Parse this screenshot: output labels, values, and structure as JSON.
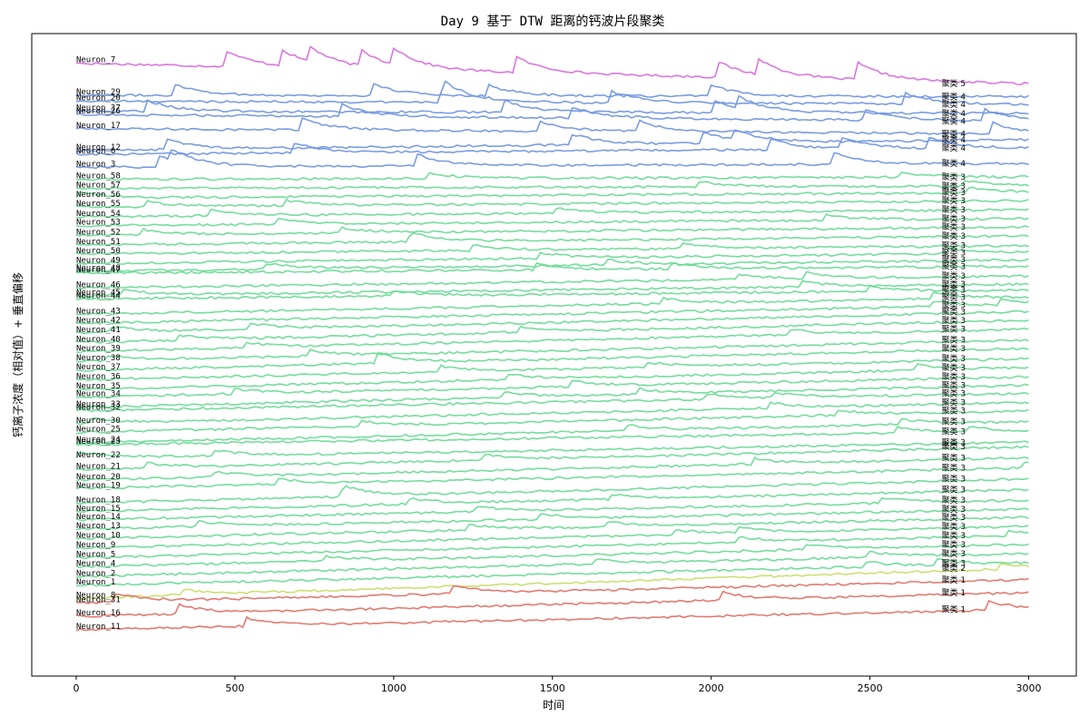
{
  "chart_data": {
    "type": "line",
    "title": "Day 9 基于 DTW 距离的钙波片段聚类",
    "xlabel": "时间",
    "ylabel": "钙离子浓度（相对值）+ 垂直偏移",
    "xlim": [
      -140,
      3150
    ],
    "ylim": [
      0,
      100
    ],
    "xticks": [
      0,
      500,
      1000,
      1500,
      2000,
      2500,
      3000
    ],
    "grid": false,
    "legend": "none",
    "cluster_label_prefix": "聚类",
    "cluster_colors": {
      "1": "#e0736a",
      "2": "#c8dd6c",
      "3": "#6ddb97",
      "4": "#7397df",
      "5": "#d770dd"
    },
    "series": [
      {
        "name": "Neuron_7",
        "cluster": 5,
        "y_start": 95.4,
        "y_end": 92.2
      },
      {
        "name": "Neuron_29",
        "cluster": 4,
        "y_start": 90.4,
        "y_end": 90.2
      },
      {
        "name": "Neuron_20",
        "cluster": 4,
        "y_start": 89.5,
        "y_end": 89.0
      },
      {
        "name": "Neuron_37",
        "cluster": 4,
        "y_start": 87.9,
        "y_end": 87.6
      },
      {
        "name": "Neuron_26",
        "cluster": 4,
        "y_start": 87.4,
        "y_end": 86.4
      },
      {
        "name": "Neuron_17",
        "cluster": 4,
        "y_start": 85.2,
        "y_end": 84.4
      },
      {
        "name": "Neuron_12",
        "cluster": 4,
        "y_start": 81.8,
        "y_end": 83.5
      },
      {
        "name": "Neuron_6",
        "cluster": 4,
        "y_start": 81.2,
        "y_end": 82.2
      },
      {
        "name": "Neuron_3",
        "cluster": 4,
        "y_start": 79.2,
        "y_end": 79.8
      },
      {
        "name": "Neuron_58",
        "cluster": 3,
        "y_start": 77.3,
        "y_end": 77.7
      },
      {
        "name": "Neuron_57",
        "cluster": 3,
        "y_start": 75.9,
        "y_end": 76.3
      },
      {
        "name": "Neuron_56",
        "cluster": 3,
        "y_start": 74.4,
        "y_end": 75.3
      },
      {
        "name": "Neuron_55",
        "cluster": 3,
        "y_start": 73.0,
        "y_end": 74.0
      },
      {
        "name": "Neuron_54",
        "cluster": 3,
        "y_start": 71.5,
        "y_end": 72.6
      },
      {
        "name": "Neuron_53",
        "cluster": 3,
        "y_start": 70.1,
        "y_end": 71.2
      },
      {
        "name": "Neuron_52",
        "cluster": 3,
        "y_start": 68.6,
        "y_end": 69.9
      },
      {
        "name": "Neuron_51",
        "cluster": 3,
        "y_start": 67.1,
        "y_end": 68.5
      },
      {
        "name": "Neuron_50",
        "cluster": 3,
        "y_start": 65.7,
        "y_end": 67.0
      },
      {
        "name": "Neuron_49",
        "cluster": 3,
        "y_start": 64.2,
        "y_end": 65.9
      },
      {
        "name": "Neuron_48",
        "cluster": 3,
        "y_start": 63.0,
        "y_end": 64.8
      },
      {
        "name": "Neuron_47",
        "cluster": 3,
        "y_start": 62.7,
        "y_end": 63.8
      },
      {
        "name": "Neuron_46",
        "cluster": 3,
        "y_start": 60.4,
        "y_end": 62.3
      },
      {
        "name": "Neuron_45",
        "cluster": 3,
        "y_start": 59.2,
        "y_end": 61.0
      },
      {
        "name": "Neuron_44",
        "cluster": 3,
        "y_start": 58.7,
        "y_end": 60.1
      },
      {
        "name": "Neuron_43",
        "cluster": 3,
        "y_start": 56.3,
        "y_end": 59.0
      },
      {
        "name": "Neuron_42",
        "cluster": 3,
        "y_start": 54.9,
        "y_end": 57.8
      },
      {
        "name": "Neuron_41",
        "cluster": 3,
        "y_start": 53.4,
        "y_end": 56.7
      },
      {
        "name": "Neuron_40",
        "cluster": 3,
        "y_start": 51.9,
        "y_end": 55.4
      },
      {
        "name": "Neuron_39",
        "cluster": 3,
        "y_start": 50.5,
        "y_end": 54.0
      },
      {
        "name": "Neuron_38",
        "cluster": 3,
        "y_start": 49.0,
        "y_end": 52.3
      },
      {
        "name": "Neuron_37",
        "cluster": 3,
        "y_start": 47.6,
        "y_end": 51.0
      },
      {
        "name": "Neuron_36",
        "cluster": 3,
        "y_start": 46.1,
        "y_end": 49.4
      },
      {
        "name": "Neuron_35",
        "cluster": 3,
        "y_start": 44.6,
        "y_end": 48.0
      },
      {
        "name": "Neuron_34",
        "cluster": 3,
        "y_start": 43.4,
        "y_end": 46.6
      },
      {
        "name": "Neuron_33",
        "cluster": 3,
        "y_start": 41.8,
        "y_end": 45.3
      },
      {
        "name": "Neuron_32",
        "cluster": 3,
        "y_start": 41.3,
        "y_end": 44.0
      },
      {
        "name": "Neuron_30",
        "cluster": 3,
        "y_start": 39.3,
        "y_end": 42.6
      },
      {
        "name": "Neuron_25",
        "cluster": 3,
        "y_start": 37.9,
        "y_end": 41.3
      },
      {
        "name": "Neuron_24",
        "cluster": 3,
        "y_start": 36.3,
        "y_end": 39.6
      },
      {
        "name": "Neuron_23",
        "cluster": 3,
        "y_start": 36.0,
        "y_end": 38.1
      },
      {
        "name": "Neuron_22",
        "cluster": 3,
        "y_start": 33.9,
        "y_end": 36.4
      },
      {
        "name": "Neuron_21",
        "cluster": 3,
        "y_start": 32.1,
        "y_end": 35.7
      },
      {
        "name": "Neuron_20",
        "cluster": 3,
        "y_start": 30.5,
        "y_end": 34.0
      },
      {
        "name": "Neuron_19",
        "cluster": 3,
        "y_start": 29.2,
        "y_end": 32.4
      },
      {
        "name": "Neuron_18",
        "cluster": 3,
        "y_start": 26.9,
        "y_end": 30.7
      },
      {
        "name": "Neuron_15",
        "cluster": 3,
        "y_start": 25.6,
        "y_end": 29.0
      },
      {
        "name": "Neuron_14",
        "cluster": 3,
        "y_start": 24.3,
        "y_end": 27.4
      },
      {
        "name": "Neuron_13",
        "cluster": 3,
        "y_start": 22.9,
        "y_end": 26.0
      },
      {
        "name": "Neuron_10",
        "cluster": 3,
        "y_start": 21.4,
        "y_end": 24.7
      },
      {
        "name": "Neuron_9",
        "cluster": 3,
        "y_start": 19.9,
        "y_end": 23.3
      },
      {
        "name": "Neuron_5",
        "cluster": 3,
        "y_start": 18.4,
        "y_end": 21.9
      },
      {
        "name": "Neuron_4",
        "cluster": 3,
        "y_start": 17.0,
        "y_end": 20.5
      },
      {
        "name": "Neuron_2",
        "cluster": 3,
        "y_start": 15.5,
        "y_end": 19.1
      },
      {
        "name": "Neuron_1",
        "cluster": 3,
        "y_start": 14.1,
        "y_end": 17.6
      },
      {
        "name": "Neuron_8",
        "cluster": 2,
        "y_start": 12.1,
        "y_end": 16.8
      },
      {
        "name": "Neuron_31",
        "cluster": 1,
        "y_start": 11.4,
        "y_end": 15.0
      },
      {
        "name": "Neuron_16",
        "cluster": 1,
        "y_start": 9.3,
        "y_end": 13.0
      },
      {
        "name": "Neuron_11",
        "cluster": 1,
        "y_start": 7.2,
        "y_end": 10.4
      }
    ]
  }
}
